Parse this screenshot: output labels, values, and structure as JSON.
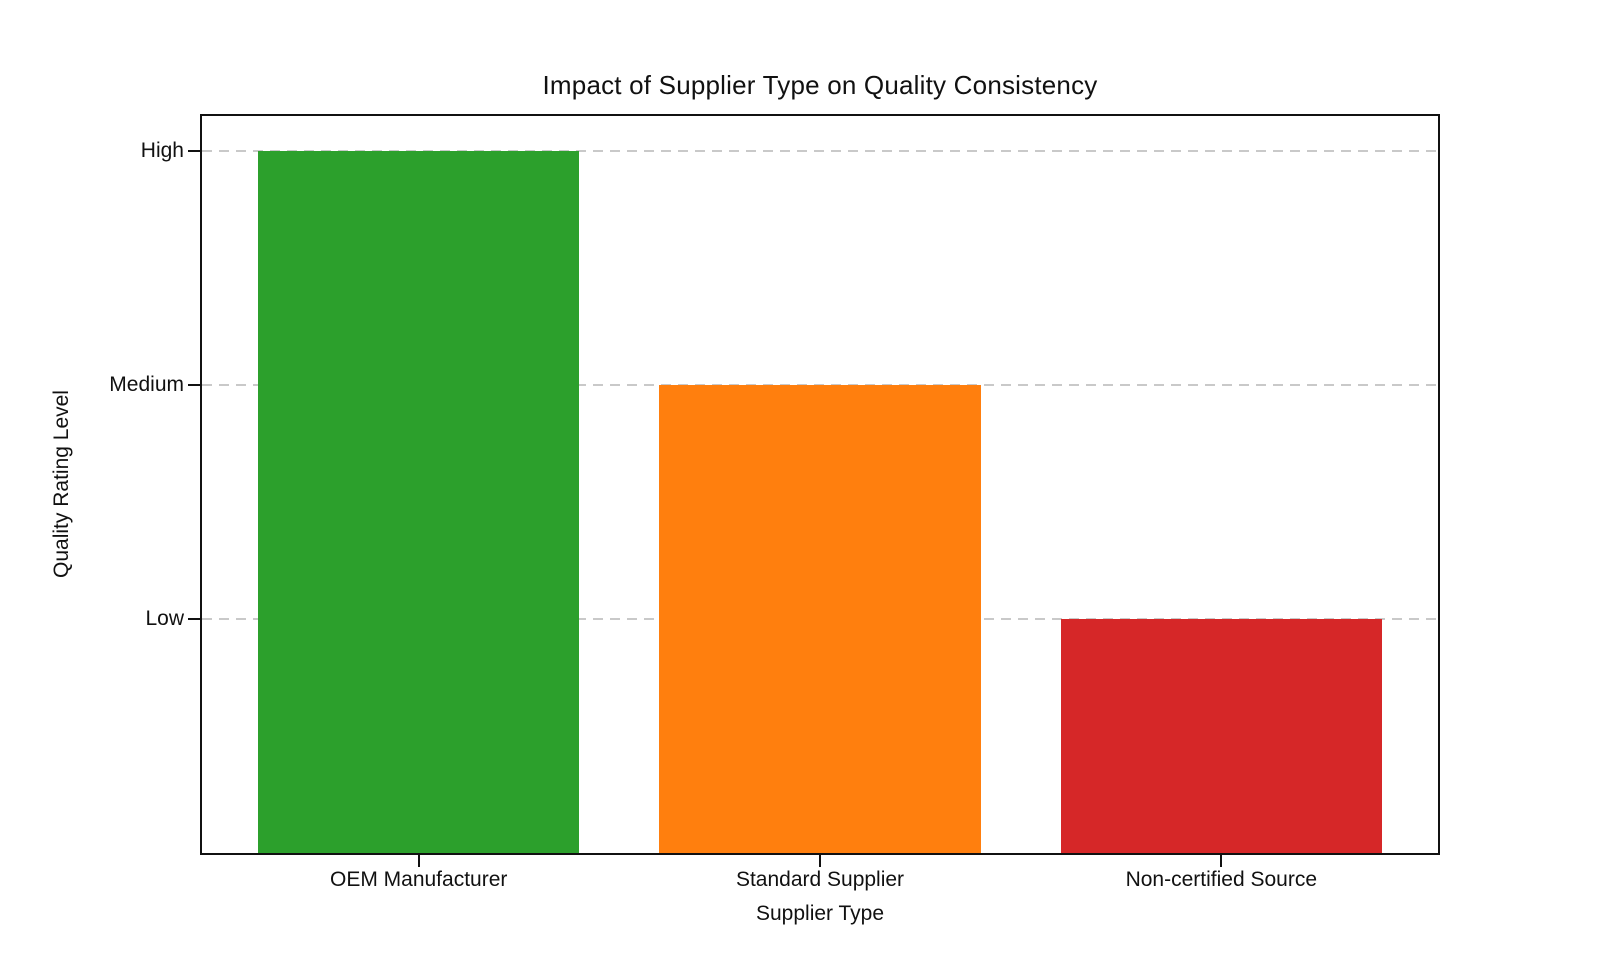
{
  "chart_data": {
    "type": "bar",
    "title": "Impact of Supplier Type on Quality Consistency",
    "xlabel": "Supplier Type",
    "ylabel": "Quality Rating Level",
    "categories": [
      "OEM Manufacturer",
      "Standard Supplier",
      "Non-certified Source"
    ],
    "values": [
      3,
      2,
      1
    ],
    "bar_colors": [
      "#2ca02c",
      "#ff7f0e",
      "#d62728"
    ],
    "yticks": [
      {
        "label": "High",
        "value": 3
      },
      {
        "label": "Medium",
        "value": 2
      },
      {
        "label": "Low",
        "value": 1
      }
    ],
    "ylim": [
      0,
      3.15
    ],
    "grid": {
      "horizontal": true,
      "style": "dashed",
      "color": "#c9c9c9"
    },
    "legend": "none",
    "background": "#ffffff",
    "frame_color": "#111111"
  }
}
